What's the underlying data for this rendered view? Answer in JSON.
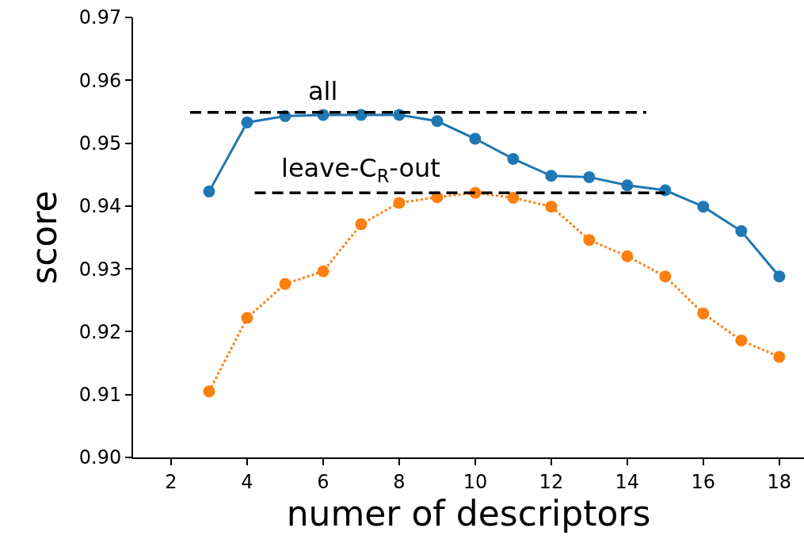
{
  "chart_data": {
    "type": "line",
    "xlabel": "numer of descriptors",
    "ylabel": "score",
    "x": [
      3,
      4,
      5,
      6,
      7,
      8,
      9,
      10,
      11,
      12,
      13,
      14,
      15,
      16,
      17,
      18
    ],
    "series": [
      {
        "color": "#1f77b4",
        "marker": "circle",
        "line_style": "solid",
        "values": [
          0.9423,
          0.9533,
          0.9543,
          0.9545,
          0.9545,
          0.9545,
          0.9535,
          0.9507,
          0.9475,
          0.9448,
          0.9446,
          0.9433,
          0.9425,
          0.9399,
          0.936,
          0.9288
        ]
      },
      {
        "color": "#ff7f0e",
        "marker": "circle",
        "line_style": "dotted",
        "values": [
          0.9105,
          0.9222,
          0.9276,
          0.9296,
          0.9371,
          0.9405,
          0.9414,
          0.9421,
          0.9413,
          0.9399,
          0.9346,
          0.932,
          0.9288,
          0.9229,
          0.9186,
          0.916
        ]
      },
      {
        "color": "#000000",
        "marker": "none",
        "line_style": "dashed",
        "x": [
          2.5,
          14.5
        ],
        "values": [
          0.9549,
          0.9549
        ]
      },
      {
        "color": "#000000",
        "marker": "none",
        "line_style": "dashed",
        "x": [
          4.2,
          15.0
        ],
        "values": [
          0.9421,
          0.9421
        ]
      }
    ],
    "annotations": [
      {
        "text": "all",
        "x": 6,
        "y": 0.9549
      },
      {
        "text": "leave-C$_{R}$-out",
        "x": 7,
        "y": 0.9421
      }
    ],
    "xlim": [
      1,
      18.65
    ],
    "xticks": [
      2,
      4,
      6,
      8,
      10,
      12,
      14,
      16,
      18
    ],
    "ylim": [
      0.9,
      0.97
    ],
    "yticks": [
      {
        "value": 0.9,
        "label": "0.90"
      },
      0.91,
      0.92,
      0.93,
      0.94,
      0.95,
      0.96,
      0.97
    ]
  }
}
